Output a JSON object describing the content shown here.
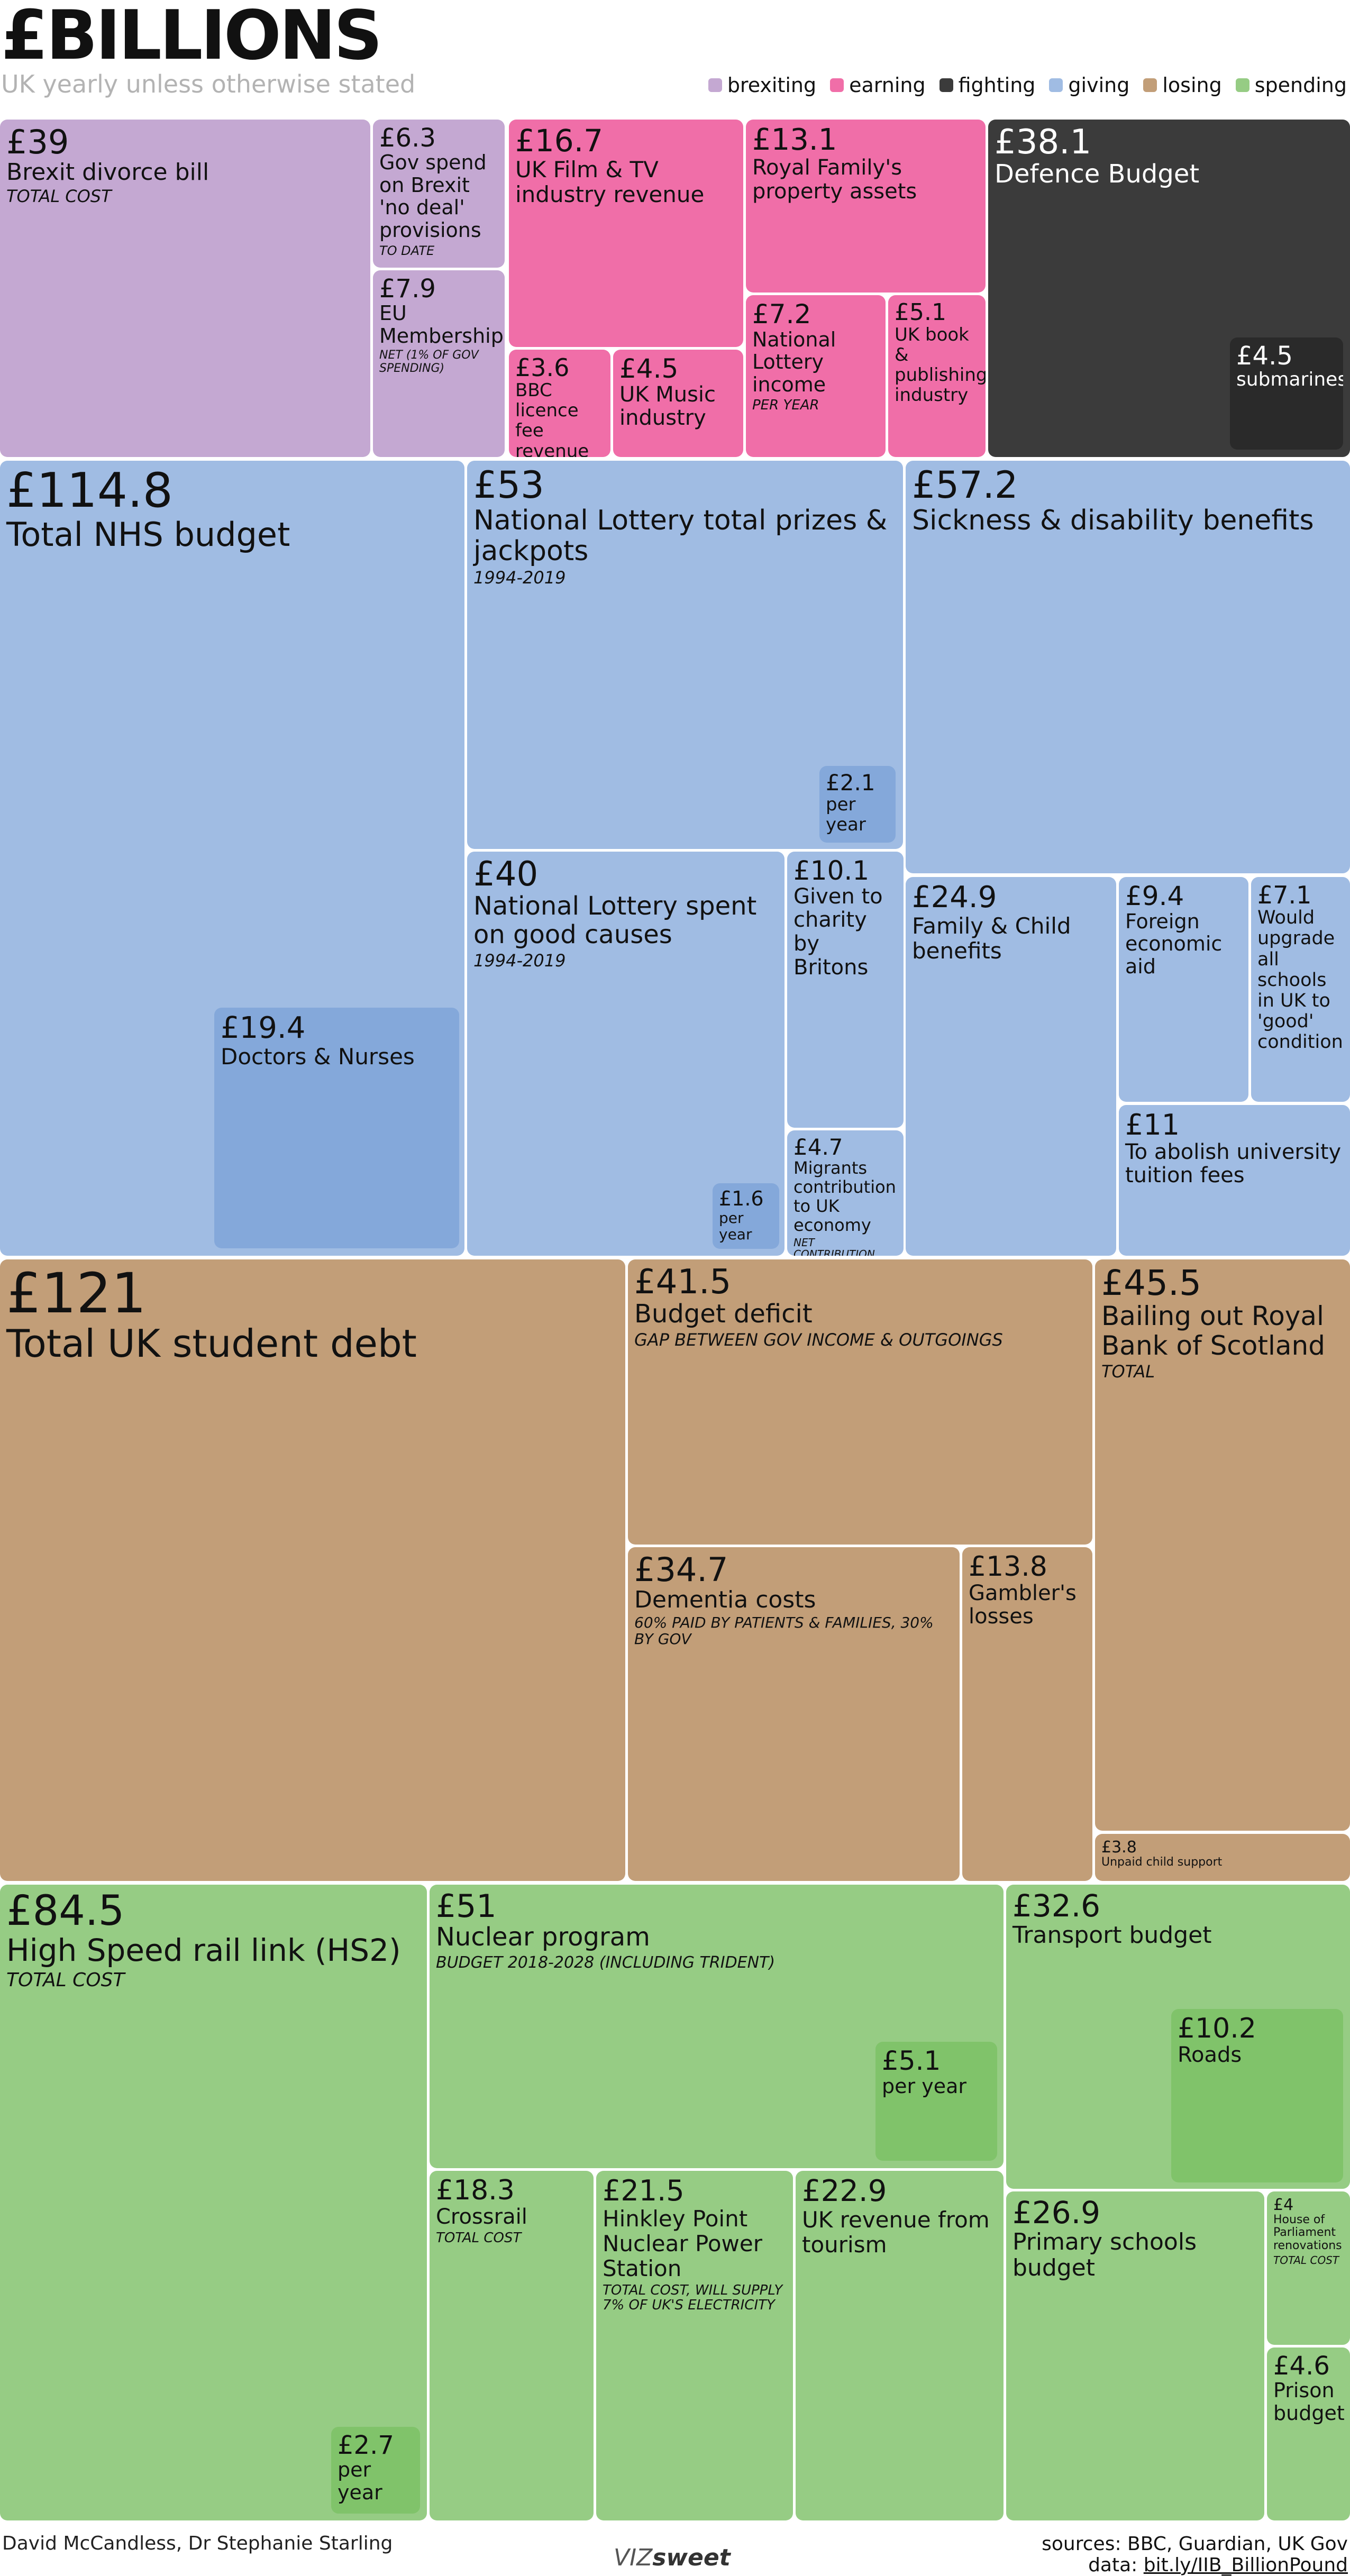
{
  "header": {
    "title": "£BILLIONS",
    "subtitle": "UK yearly unless otherwise stated"
  },
  "legend": [
    {
      "key": "brexiting",
      "label": "brexiting",
      "color": "#c4a8d2"
    },
    {
      "key": "earning",
      "label": "earning",
      "color": "#f06ea8"
    },
    {
      "key": "fighting",
      "label": "fighting",
      "color": "#3b3b3b"
    },
    {
      "key": "giving",
      "label": "giving",
      "color": "#a0bce3"
    },
    {
      "key": "losing",
      "label": "losing",
      "color": "#c29e78"
    },
    {
      "key": "spending",
      "label": "spending",
      "color": "#96cc84"
    }
  ],
  "footer": {
    "authors": "David McCandless, Dr Stephanie Starling",
    "brand_light": "VIZ",
    "brand_bold": "sweet",
    "sources": "sources: BBC, Guardian, UK Gov",
    "data_prefix": "data: ",
    "data_link": "bit.ly/IIB_BillionPound"
  },
  "chart_data": {
    "type": "treemap",
    "unit": "£ billions",
    "items": [
      {
        "id": "brexit-divorce",
        "category": "brexiting",
        "value": 39,
        "value_label": "£39",
        "label": "Brexit divorce bill",
        "note": "TOTAL COST"
      },
      {
        "id": "no-deal",
        "category": "brexiting",
        "value": 6.3,
        "value_label": "£6.3",
        "label": "Gov spend on Brexit 'no deal' provisions",
        "note": "TO DATE"
      },
      {
        "id": "eu-membership",
        "category": "brexiting",
        "value": 7.9,
        "value_label": "£7.9",
        "label": "EU Membership",
        "note": "NET (1% OF GOV SPENDING)"
      },
      {
        "id": "film-tv",
        "category": "earning",
        "value": 16.7,
        "value_label": "£16.7",
        "label": "UK Film & TV industry revenue",
        "note": ""
      },
      {
        "id": "bbc-licence",
        "category": "earning",
        "value": 3.6,
        "value_label": "£3.6",
        "label": "BBC licence fee revenue",
        "note": ""
      },
      {
        "id": "uk-music",
        "category": "earning",
        "value": 4.5,
        "value_label": "£4.5",
        "label": "UK Music industry",
        "note": ""
      },
      {
        "id": "royal-property",
        "category": "earning",
        "value": 13.1,
        "value_label": "£13.1",
        "label": "Royal Family's property assets",
        "note": ""
      },
      {
        "id": "lottery-income",
        "category": "earning",
        "value": 7.2,
        "value_label": "£7.2",
        "label": "National Lottery income",
        "note": "PER YEAR"
      },
      {
        "id": "book-publishing",
        "category": "earning",
        "value": 5.1,
        "value_label": "£5.1",
        "label": "UK book & publishing industry",
        "note": ""
      },
      {
        "id": "defence",
        "category": "fighting",
        "value": 38.1,
        "value_label": "£38.1",
        "label": "Defence Budget",
        "note": ""
      },
      {
        "id": "submarines",
        "category": "fighting",
        "value": 4.5,
        "value_label": "£4.5",
        "label": "submarines",
        "note": "",
        "parent": "defence"
      },
      {
        "id": "nhs",
        "category": "giving",
        "value": 114.8,
        "value_label": "£114.8",
        "label": "Total NHS budget",
        "note": ""
      },
      {
        "id": "doctors-nurses",
        "category": "giving",
        "value": 19.4,
        "value_label": "£19.4",
        "label": "Doctors & Nurses",
        "note": "",
        "parent": "nhs"
      },
      {
        "id": "lottery-prizes",
        "category": "giving",
        "value": 53,
        "value_label": "£53",
        "label": "National Lottery total prizes & jackpots",
        "note": "1994-2019"
      },
      {
        "id": "lottery-prizes-year",
        "category": "giving",
        "value": 2.1,
        "value_label": "£2.1",
        "label": "per year",
        "note": "",
        "parent": "lottery-prizes"
      },
      {
        "id": "sickness",
        "category": "giving",
        "value": 57.2,
        "value_label": "£57.2",
        "label": "Sickness & disability benefits",
        "note": ""
      },
      {
        "id": "lottery-good",
        "category": "giving",
        "value": 40,
        "value_label": "£40",
        "label": "National Lottery spent on good causes",
        "note": "1994-2019"
      },
      {
        "id": "lottery-good-year",
        "category": "giving",
        "value": 1.6,
        "value_label": "£1.6",
        "label": "per year",
        "note": "",
        "parent": "lottery-good"
      },
      {
        "id": "charity",
        "category": "giving",
        "value": 10.1,
        "value_label": "£10.1",
        "label": "Given to charity by Britons",
        "note": ""
      },
      {
        "id": "migrants",
        "category": "giving",
        "value": 4.7,
        "value_label": "£4.7",
        "label": "Migrants contribution to UK economy",
        "note": "NET CONTRIBUTION PER YEAR"
      },
      {
        "id": "family-child",
        "category": "giving",
        "value": 24.9,
        "value_label": "£24.9",
        "label": "Family & Child benefits",
        "note": ""
      },
      {
        "id": "foreign-aid",
        "category": "giving",
        "value": 9.4,
        "value_label": "£9.4",
        "label": "Foreign economic aid",
        "note": ""
      },
      {
        "id": "schools-upgrade",
        "category": "giving",
        "value": 7.1,
        "value_label": "£7.1",
        "label": "Would upgrade all schools in UK to 'good' condition",
        "note": ""
      },
      {
        "id": "tuition",
        "category": "giving",
        "value": 11,
        "value_label": "£11",
        "label": "To abolish university tuition fees",
        "note": ""
      },
      {
        "id": "student-debt",
        "category": "losing",
        "value": 121,
        "value_label": "£121",
        "label": "Total UK student debt",
        "note": ""
      },
      {
        "id": "budget-deficit",
        "category": "losing",
        "value": 41.5,
        "value_label": "£41.5",
        "label": "Budget deficit",
        "note": "GAP BETWEEN GOV INCOME & OUTGOINGS"
      },
      {
        "id": "rbs",
        "category": "losing",
        "value": 45.5,
        "value_label": "£45.5",
        "label": "Bailing out Royal Bank of Scotland",
        "note": "TOTAL"
      },
      {
        "id": "dementia",
        "category": "losing",
        "value": 34.7,
        "value_label": "£34.7",
        "label": "Dementia costs",
        "note": "60% PAID BY PATIENTS & FAMILIES, 30% BY GOV"
      },
      {
        "id": "gamblers",
        "category": "losing",
        "value": 13.8,
        "value_label": "£13.8",
        "label": "Gambler's losses",
        "note": ""
      },
      {
        "id": "child-support",
        "category": "losing",
        "value": 3.8,
        "value_label": "£3.8",
        "label": "Unpaid child support",
        "note": ""
      },
      {
        "id": "hs2",
        "category": "spending",
        "value": 84.5,
        "value_label": "£84.5",
        "label": "High Speed rail link (HS2)",
        "note": "TOTAL COST"
      },
      {
        "id": "hs2-year",
        "category": "spending",
        "value": 2.7,
        "value_label": "£2.7",
        "label": "per year",
        "note": "",
        "parent": "hs2"
      },
      {
        "id": "nuclear",
        "category": "spending",
        "value": 51,
        "value_label": "£51",
        "label": "Nuclear program",
        "note": "BUDGET 2018-2028 (INCLUDING TRIDENT)"
      },
      {
        "id": "nuclear-year",
        "category": "spending",
        "value": 5.1,
        "value_label": "£5.1",
        "label": "per year",
        "note": "",
        "parent": "nuclear"
      },
      {
        "id": "transport",
        "category": "spending",
        "value": 32.6,
        "value_label": "£32.6",
        "label": "Transport budget",
        "note": ""
      },
      {
        "id": "roads",
        "category": "spending",
        "value": 10.2,
        "value_label": "£10.2",
        "label": "Roads",
        "note": "",
        "parent": "transport"
      },
      {
        "id": "crossrail",
        "category": "spending",
        "value": 18.3,
        "value_label": "£18.3",
        "label": "Crossrail",
        "note": "TOTAL COST"
      },
      {
        "id": "hinkley",
        "category": "spending",
        "value": 21.5,
        "value_label": "£21.5",
        "label": "Hinkley Point Nuclear Power Station",
        "note": "TOTAL COST, WILL SUPPLY 7% OF UK'S ELECTRICITY"
      },
      {
        "id": "tourism",
        "category": "spending",
        "value": 22.9,
        "value_label": "£22.9",
        "label": "UK revenue from tourism",
        "note": ""
      },
      {
        "id": "primary-schools",
        "category": "spending",
        "value": 26.9,
        "value_label": "£26.9",
        "label": "Primary schools budget",
        "note": ""
      },
      {
        "id": "parliament",
        "category": "spending",
        "value": 4,
        "value_label": "£4",
        "label": "House of Parliament renovations",
        "note": "TOTAL COST"
      },
      {
        "id": "prison",
        "category": "spending",
        "value": 4.6,
        "value_label": "£4.6",
        "label": "Prison budget",
        "note": ""
      }
    ]
  }
}
